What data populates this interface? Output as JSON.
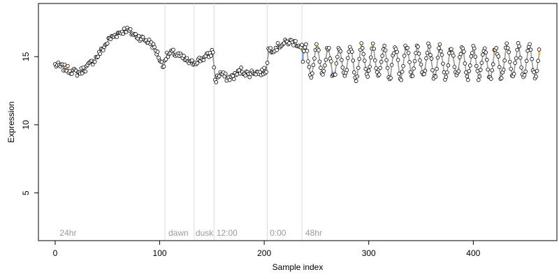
{
  "chart_data": {
    "type": "scatter",
    "title": "",
    "xlabel": "Sample index",
    "ylabel": "Expression",
    "xlim": [
      -16,
      480
    ],
    "ylim": [
      1.5,
      18.9
    ],
    "xticks": [
      0,
      100,
      200,
      300,
      400
    ],
    "yticks": [
      5,
      10,
      15
    ],
    "grid": false,
    "colors": {
      "point_fill": "#ffffff",
      "point_edge": "#000000",
      "line": "#999999",
      "bar_blue": "#7fa6d6",
      "bar_orange": "#f5a623",
      "divider": "#d9d9d9",
      "region_label": "#9a9a9a"
    },
    "region_dividers": [
      105,
      133,
      152,
      203,
      236
    ],
    "region_labels": [
      {
        "x": 3,
        "text": "24hr"
      },
      {
        "x": 107,
        "text": "dawn"
      },
      {
        "x": 133,
        "text": "dusk"
      },
      {
        "x": 153,
        "text": "12:00"
      },
      {
        "x": 204,
        "text": "0:00"
      },
      {
        "x": 238,
        "text": "48hr"
      }
    ],
    "anchors": [
      [
        0,
        14.4
      ],
      [
        8,
        14.2
      ],
      [
        14,
        14.0
      ],
      [
        22,
        13.8
      ],
      [
        30,
        14.2
      ],
      [
        38,
        14.8
      ],
      [
        45,
        15.5
      ],
      [
        52,
        16.3
      ],
      [
        60,
        16.7
      ],
      [
        68,
        17.0
      ],
      [
        76,
        16.6
      ],
      [
        84,
        16.3
      ],
      [
        92,
        16.0
      ],
      [
        98,
        15.2
      ],
      [
        103,
        14.3
      ],
      [
        106,
        15.0
      ],
      [
        112,
        15.3
      ],
      [
        118,
        15.1
      ],
      [
        124,
        14.8
      ],
      [
        130,
        14.5
      ],
      [
        136,
        14.7
      ],
      [
        142,
        14.9
      ],
      [
        147,
        15.1
      ],
      [
        151,
        15.4
      ],
      [
        153,
        13.2
      ],
      [
        158,
        13.8
      ],
      [
        165,
        13.4
      ],
      [
        172,
        13.6
      ],
      [
        178,
        14.0
      ],
      [
        185,
        13.7
      ],
      [
        190,
        13.9
      ],
      [
        196,
        13.8
      ],
      [
        202,
        14.0
      ],
      [
        204,
        15.5
      ],
      [
        210,
        15.6
      ],
      [
        216,
        15.9
      ],
      [
        224,
        16.1
      ],
      [
        231,
        16.0
      ],
      [
        235,
        15.8
      ]
    ],
    "oscillation": {
      "start": 237,
      "end": 463,
      "period": 10.7,
      "mean": 14.6,
      "amplitude": 1.15
    }
  }
}
